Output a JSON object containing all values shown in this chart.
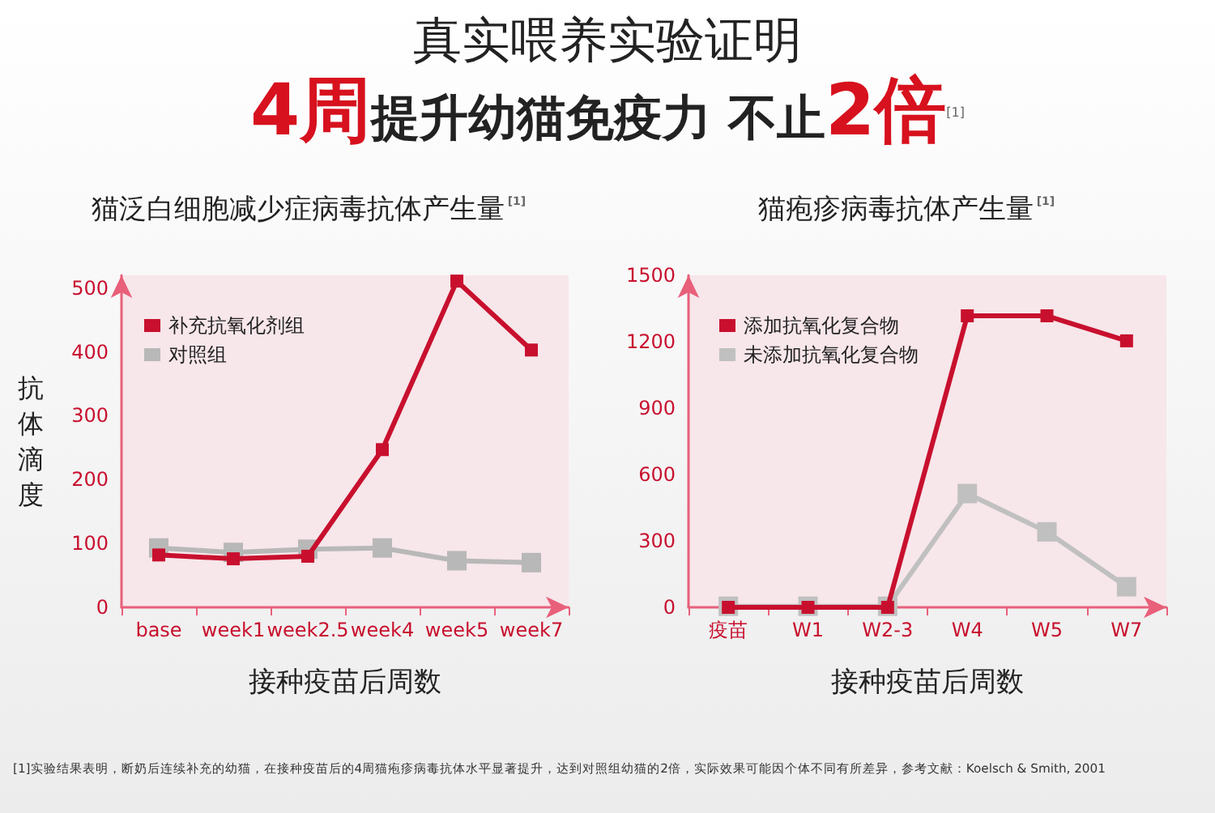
{
  "chart_data": [
    {
      "type": "line",
      "title": "猫泛白细胞减少症病毒抗体产生量$^{[1]}$",
      "xlabel": "接种疫苗后周数",
      "ylabel": "抗体滴度",
      "annotations": [
        "真实喂养实验证明",
        "4周提升幼猫免疫力 不止2倍$^{[1]}$"
      ],
      "categories": [
        "base",
        "week1",
        "week2.5",
        "week4",
        "week5",
        "week7"
      ],
      "series": [
        {
          "name": "补充抗氧化剂组",
          "color": "#c8102e",
          "values": [
            82,
            76,
            80,
            247,
            511,
            403
          ]
        },
        {
          "name": "对照组",
          "color": "#b8b8b8",
          "values": [
            93,
            86,
            91,
            93,
            73,
            70
          ]
        }
      ],
      "ylim": [
        0,
        520
      ],
      "yticks": [
        0,
        100,
        200,
        300,
        400,
        500
      ],
      "grid": false,
      "legend": "top left",
      "marker": "square"
    },
    {
      "type": "line",
      "title": "猫疱疹病毒抗体产生量$^{[1]}$",
      "xlabel": "接种疫苗后周数",
      "annotations": [
        "[1]实验结果表明，断奶后连续补充的幼猫，在接种疫苗后的4周猫疱疹病毒抗体水平显著提升，达到对照组幼猫的2倍，实际效果可能因个体不同有所差异，参考文献：Koelsch & Smith, 2001"
      ],
      "categories": [
        "疫苗",
        "W1",
        "W2-3",
        "W4",
        "W5",
        "W7"
      ],
      "series": [
        {
          "name": "添加抗氧化复合物",
          "color": "#c8102e",
          "values": [
            0,
            0,
            0,
            1317,
            1317,
            1204
          ]
        },
        {
          "name": "未添加抗氧化复合物",
          "color": "#c0c0c0",
          "values": [
            5,
            5,
            5,
            514,
            341,
            93
          ]
        }
      ],
      "ylim": [
        0,
        1500
      ],
      "yticks": [
        0,
        300,
        600,
        900,
        1200,
        1500
      ],
      "grid": false,
      "legend": "top left",
      "marker": "square"
    }
  ]
}
